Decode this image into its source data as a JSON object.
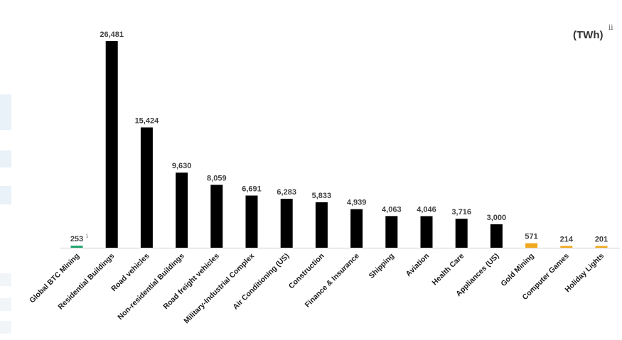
{
  "chart_data": {
    "type": "bar",
    "title": "",
    "unit_label": "(TWh)",
    "unit_footnote": "ii",
    "xlabel": "",
    "ylabel": "",
    "ylim": [
      0,
      28000
    ],
    "grid": false,
    "legend": "none",
    "categories": [
      "Global BTC Mining",
      "Residential Buildings",
      "Road vehicles",
      "Non-residential Buildings",
      "Road freight vehicles",
      "Military-Industrial Complex",
      "Air Conditioning (US)",
      "Construction",
      "Finance & Insurance",
      "Shipping",
      "Aviation",
      "Health Care",
      "Appliances (US)",
      "Gold Mining",
      "Computer Games",
      "Holiday Lights"
    ],
    "values": [
      253,
      26481,
      15424,
      9630,
      8059,
      6691,
      6283,
      5833,
      4939,
      4063,
      4046,
      3716,
      3000,
      571,
      214,
      201
    ],
    "value_labels": [
      "253",
      "26,481",
      "15,424",
      "9,630",
      "8,059",
      "6,691",
      "6,283",
      "5,833",
      "4,939",
      "4,063",
      "4,046",
      "3,716",
      "3,000",
      "571",
      "214",
      "201"
    ],
    "first_label_footnote": "i",
    "colors": [
      "#1aa36b",
      "#000000",
      "#000000",
      "#000000",
      "#000000",
      "#000000",
      "#000000",
      "#000000",
      "#000000",
      "#000000",
      "#000000",
      "#000000",
      "#000000",
      "#f0a81c",
      "#f0a81c",
      "#f0a81c"
    ]
  }
}
